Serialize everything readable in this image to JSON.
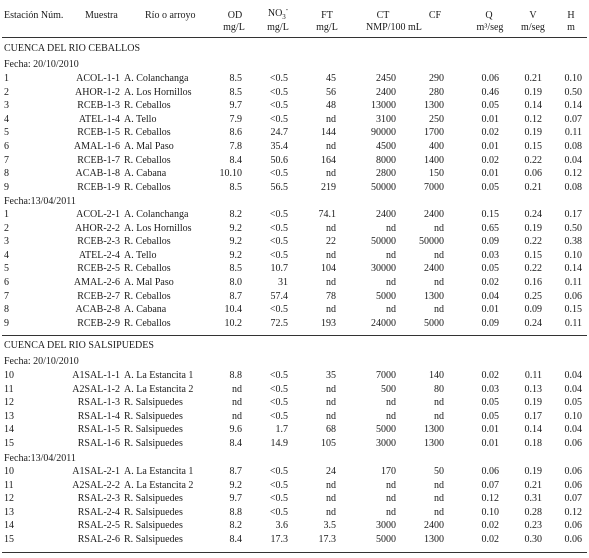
{
  "headers": {
    "estacion": "Estación Núm.",
    "muestra": "Muestra",
    "rio": "Río o arroyo",
    "od_name": "OD",
    "od_unit": "mg/L",
    "no3_name": "NO",
    "no3_sub": "3",
    "no3_sup": "-",
    "no3_unit": "mg/L",
    "ft_name": "FT",
    "ft_unit": "mg/L",
    "ct_name": "CT",
    "ct_unit": "NMP/100 mL",
    "cf_name": "CF",
    "q_name": "Q",
    "q_unit": "m³/seg",
    "v_name": "V",
    "v_unit": "m/seg",
    "h_name": "H",
    "h_unit": "m"
  },
  "sections": [
    {
      "title": "CUENCA DEL RIO CEBALLOS",
      "groups": [
        {
          "date": "Fecha: 20/10/2010",
          "rows": [
            [
              "1",
              "ACOL-1-1",
              "A. Colanchanga",
              "8.5",
              "<0.5",
              "45",
              "2450",
              "290",
              "0.06",
              "0.21",
              "0.10"
            ],
            [
              "2",
              "AHOR-1-2",
              "A. Los Hornillos",
              "8.5",
              "<0.5",
              "56",
              "2400",
              "280",
              "0.46",
              "0.19",
              "0.50"
            ],
            [
              "3",
              "RCEB-1-3",
              "R. Ceballos",
              "9.7",
              "<0.5",
              "48",
              "13000",
              "1300",
              "0.05",
              "0.14",
              "0.14"
            ],
            [
              "4",
              "ATEL-1-4",
              "A. Tello",
              "7.9",
              "<0.5",
              "nd",
              "3100",
              "250",
              "0.01",
              "0.12",
              "0.07"
            ],
            [
              "5",
              "RCEB-1-5",
              "R. Ceballos",
              "8.6",
              "24.7",
              "144",
              "90000",
              "1700",
              "0.02",
              "0.19",
              "0.11"
            ],
            [
              "6",
              "AMAL-1-6",
              "A. Mal Paso",
              "7.8",
              "35.4",
              "nd",
              "4500",
              "400",
              "0.01",
              "0.15",
              "0.08"
            ],
            [
              "7",
              "RCEB-1-7",
              "R. Ceballos",
              "8.4",
              "50.6",
              "164",
              "8000",
              "1400",
              "0.02",
              "0.22",
              "0.04"
            ],
            [
              "8",
              "ACAB-1-8",
              "A. Cabana",
              "10.10",
              "<0.5",
              "nd",
              "2800",
              "150",
              "0.01",
              "0.06",
              "0.12"
            ],
            [
              "9",
              "RCEB-1-9",
              "R. Ceballos",
              "8.5",
              "56.5",
              "219",
              "50000",
              "7000",
              "0.05",
              "0.21",
              "0.08"
            ]
          ]
        },
        {
          "date": "Fecha:13/04/2011",
          "rows": [
            [
              "1",
              "ACOL-2-1",
              "A. Colanchanga",
              "8.2",
              "<0.5",
              "74.1",
              "2400",
              "2400",
              "0.15",
              "0.24",
              "0.17"
            ],
            [
              "2",
              "AHOR-2-2",
              "A. Los Hornillos",
              "9.2",
              "<0.5",
              "nd",
              "nd",
              "nd",
              "0.65",
              "0.19",
              "0.50"
            ],
            [
              "3",
              "RCEB-2-3",
              "R. Ceballos",
              "9.2",
              "<0.5",
              "22",
              "50000",
              "50000",
              "0.09",
              "0.22",
              "0.38"
            ],
            [
              "4",
              "ATEL-2-4",
              "A. Tello",
              "9.2",
              "<0.5",
              "nd",
              "nd",
              "nd",
              "0.03",
              "0.15",
              "0.10"
            ],
            [
              "5",
              "RCEB-2-5",
              "R. Ceballos",
              "8.5",
              "10.7",
              "104",
              "30000",
              "2400",
              "0.05",
              "0.22",
              "0.14"
            ],
            [
              "6",
              "AMAL-2-6",
              "A. Mal Paso",
              "8.0",
              "31",
              "nd",
              "nd",
              "nd",
              "0.02",
              "0.16",
              "0.11"
            ],
            [
              "7",
              "RCEB-2-7",
              "R. Ceballos",
              "8.7",
              "57.4",
              "78",
              "5000",
              "1300",
              "0.04",
              "0.25",
              "0.06"
            ],
            [
              "8",
              "ACAB-2-8",
              "A. Cabana",
              "10.4",
              "<0.5",
              "nd",
              "nd",
              "nd",
              "0.01",
              "0.09",
              "0.15"
            ],
            [
              "9",
              "RCEB-2-9",
              "R. Ceballos",
              "10.2",
              "72.5",
              "193",
              "24000",
              "5000",
              "0.09",
              "0.24",
              "0.11"
            ]
          ]
        }
      ]
    },
    {
      "title": "CUENCA DEL RIO SALSIPUEDES",
      "groups": [
        {
          "date": "Fecha: 20/10/2010",
          "rows": [
            [
              "10",
              "A1SAL-1-1",
              "A. La Estancita 1",
              "8.8",
              "<0.5",
              "35",
              "7000",
              "140",
              "0.02",
              "0.11",
              "0.04"
            ],
            [
              "11",
              "A2SAL-1-2",
              "A. La Estancita 2",
              "nd",
              "<0.5",
              "nd",
              "500",
              "80",
              "0.03",
              "0.13",
              "0.04"
            ],
            [
              "12",
              "RSAL-1-3",
              "R. Salsipuedes",
              "nd",
              "<0.5",
              "nd",
              "nd",
              "nd",
              "0.05",
              "0.19",
              "0.05"
            ],
            [
              "13",
              "RSAL-1-4",
              "R. Salsipuedes",
              "nd",
              "<0.5",
              "nd",
              "nd",
              "nd",
              "0.05",
              "0.17",
              "0.10"
            ],
            [
              "14",
              "RSAL-1-5",
              "R. Salsipuedes",
              "9.6",
              "1.7",
              "68",
              "5000",
              "1300",
              "0.01",
              "0.14",
              "0.04"
            ],
            [
              "15",
              "RSAL-1-6",
              "R. Salsipuedes",
              "8.4",
              "14.9",
              "105",
              "3000",
              "1300",
              "0.01",
              "0.18",
              "0.06"
            ]
          ]
        },
        {
          "date": "Fecha:13/04/2011",
          "rows": [
            [
              "10",
              "A1SAL-2-1",
              "A. La Estancita 1",
              "8.7",
              "<0.5",
              "24",
              "170",
              "50",
              "0.06",
              "0.19",
              "0.06"
            ],
            [
              "11",
              "A2SAL-2-2",
              "A. La Estancita 2",
              "9.2",
              "<0.5",
              "nd",
              "nd",
              "nd",
              "0.07",
              "0.21",
              "0.06"
            ],
            [
              "12",
              "RSAL-2-3",
              "R. Salsipuedes",
              "9.7",
              "<0.5",
              "nd",
              "nd",
              "nd",
              "0.12",
              "0.31",
              "0.07"
            ],
            [
              "13",
              "RSAL-2-4",
              "R. Salsipuedes",
              "8.8",
              "<0.5",
              "nd",
              "nd",
              "nd",
              "0.10",
              "0.28",
              "0.12"
            ],
            [
              "14",
              "RSAL-2-5",
              "R. Salsipuedes",
              "8.2",
              "3.6",
              "3.5",
              "3000",
              "2400",
              "0.02",
              "0.23",
              "0.06"
            ],
            [
              "15",
              "RSAL-2-6",
              "R. Salsipuedes",
              "8.4",
              "17.3",
              "17.3",
              "5000",
              "1300",
              "0.02",
              "0.30",
              "0.06"
            ]
          ]
        }
      ]
    }
  ]
}
